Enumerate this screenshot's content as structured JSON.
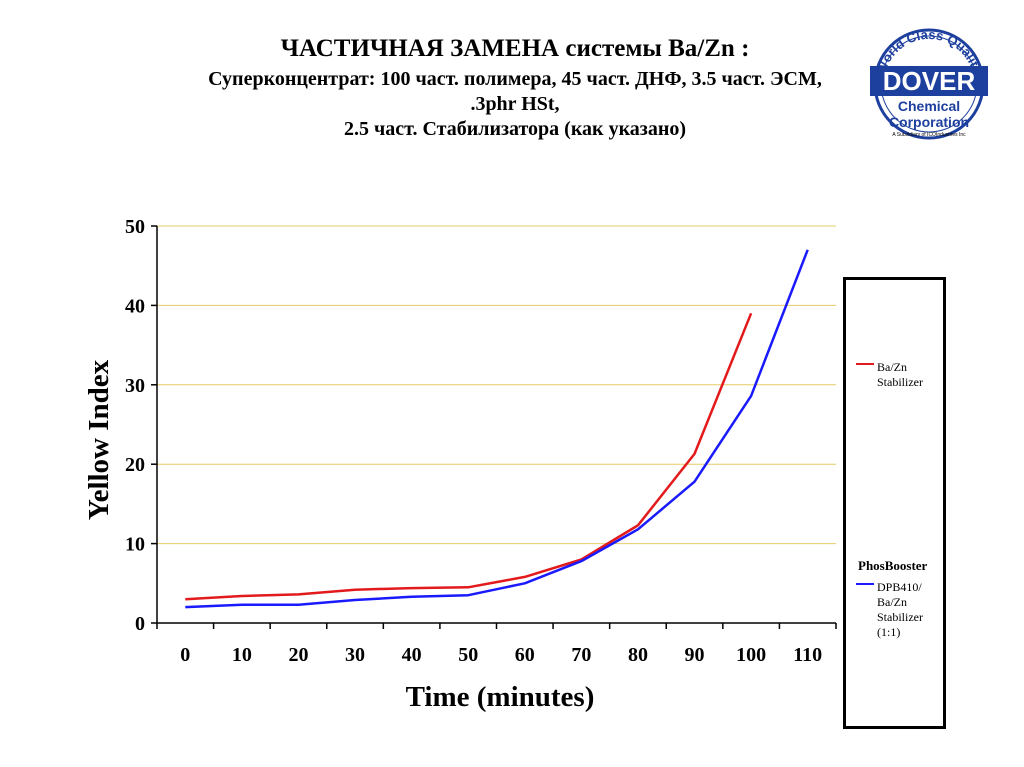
{
  "title": {
    "line1": "ЧАСТИЧНАЯ ЗАМЕНА системы Ba/Zn :",
    "line2": "Суперконцентрат: 100 част. полимера, 45 част.  ДНФ, 3.5 част. ЭСМ,",
    "line3": ".3phr HSt,",
    "line4": "2.5 част. Стабилизатора (как указано)"
  },
  "logo": {
    "arc_text": "World Class Quality",
    "brand": "DOVER",
    "line1": "Chemical",
    "line2": "Corporation",
    "tagline": "A Subsidiary of ICOIndustries Inc"
  },
  "colors": {
    "series1": "#e31a1c",
    "series2": "#1a1aff",
    "grid": "#e6cc66",
    "logo_blue": "#1d3f9e"
  },
  "legend": {
    "entry1": "Ba/Zn Stabilizer",
    "group_title": "PhosBooster",
    "entry2": "DPB410/ Ba/Zn Stabilizer (1:1)"
  },
  "chart_data": {
    "type": "line",
    "title": "",
    "xlabel": "Time (minutes)",
    "ylabel": "Yellow Index",
    "categories": [
      "0",
      "10",
      "20",
      "30",
      "40",
      "50",
      "60",
      "70",
      "80",
      "90",
      "100",
      "110"
    ],
    "xlim": [
      0,
      110
    ],
    "ylim": [
      0,
      50
    ],
    "yticks": [
      "0",
      "10",
      "20",
      "30",
      "40",
      "50"
    ],
    "grid": true,
    "legend_position": "right",
    "series": [
      {
        "name": "Ba/Zn Stabilizer",
        "color": "#e31a1c",
        "x": [
          0,
          10,
          20,
          30,
          40,
          50,
          60,
          70,
          80,
          90,
          100
        ],
        "values": [
          3.0,
          3.4,
          3.6,
          4.2,
          4.4,
          4.5,
          5.8,
          8.0,
          12.3,
          21.3,
          39.0
        ]
      },
      {
        "name": "DPB410/ Ba/Zn Stabilizer (1:1)",
        "color": "#1a1aff",
        "x": [
          0,
          10,
          20,
          30,
          40,
          50,
          60,
          70,
          80,
          90,
          100,
          110
        ],
        "values": [
          2.0,
          2.3,
          2.3,
          2.9,
          3.3,
          3.5,
          5.0,
          7.8,
          11.8,
          17.8,
          28.6,
          47.0
        ]
      }
    ]
  }
}
